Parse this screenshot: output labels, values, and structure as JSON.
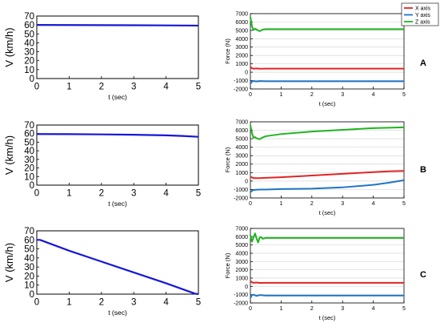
{
  "figure": {
    "legend": {
      "entries": [
        "X axis",
        "Y axis",
        "Z axis"
      ],
      "placement": "top-right"
    },
    "row_labels": [
      "A",
      "B",
      "C"
    ],
    "colors": {
      "velocity": "#1717d6",
      "x": "#e02424",
      "y": "#1f74c4",
      "z": "#1fb41f",
      "grid": "#d7d7d7"
    }
  },
  "chart_data": [
    {
      "id": "A-velocity",
      "type": "line",
      "row": "A",
      "xlabel": "t (sec)",
      "ylabel": "V (km/h)",
      "xlim": [
        0,
        5
      ],
      "ylim": [
        0,
        70
      ],
      "xticks": [
        0,
        1,
        2,
        3,
        4,
        5
      ],
      "yticks": [
        0,
        10,
        20,
        30,
        40,
        50,
        60,
        70
      ],
      "grid": false,
      "series": [
        {
          "color_key": "velocity",
          "x": [
            0,
            1,
            2,
            3,
            4,
            5
          ],
          "y": [
            60,
            59.9,
            59.8,
            59.7,
            59.5,
            59.3
          ]
        }
      ]
    },
    {
      "id": "A-force",
      "type": "line",
      "row": "A",
      "xlabel": "t (sec)",
      "ylabel": "Force (N)",
      "xlim": [
        0,
        5
      ],
      "ylim": [
        -2000,
        7000
      ],
      "xticks": [
        0,
        1,
        2,
        3,
        4,
        5
      ],
      "yticks": [
        -2000,
        -1000,
        0,
        1000,
        2000,
        3000,
        4000,
        5000,
        6000,
        7000
      ],
      "grid": true,
      "series": [
        {
          "name": "X axis",
          "color_key": "x",
          "x": [
            0,
            0.05,
            0.1,
            0.2,
            0.3,
            0.5,
            1,
            5
          ],
          "y": [
            650,
            480,
            420,
            450,
            420,
            430,
            430,
            430
          ]
        },
        {
          "name": "Y axis",
          "color_key": "y",
          "x": [
            0,
            0.05,
            0.1,
            0.2,
            0.3,
            0.5,
            1,
            5
          ],
          "y": [
            -1400,
            -1100,
            -1050,
            -1100,
            -1050,
            -1080,
            -1080,
            -1080
          ]
        },
        {
          "name": "Z axis",
          "color_key": "z",
          "x": [
            0,
            0.05,
            0.1,
            0.15,
            0.2,
            0.3,
            0.4,
            0.5,
            1,
            5
          ],
          "y": [
            6600,
            5500,
            5050,
            5200,
            5100,
            4900,
            5100,
            5150,
            5150,
            5150
          ]
        }
      ]
    },
    {
      "id": "B-velocity",
      "type": "line",
      "row": "B",
      "xlabel": "t (sec)",
      "ylabel": "V (km/h)",
      "xlim": [
        0,
        5
      ],
      "ylim": [
        0,
        70
      ],
      "xticks": [
        0,
        1,
        2,
        3,
        4,
        5
      ],
      "yticks": [
        0,
        10,
        20,
        30,
        40,
        50,
        60,
        70
      ],
      "grid": false,
      "series": [
        {
          "color_key": "velocity",
          "x": [
            0,
            1,
            2,
            3,
            4,
            4.5,
            5
          ],
          "y": [
            59.5,
            59.4,
            59.1,
            58.7,
            58,
            57.3,
            56.3
          ]
        }
      ]
    },
    {
      "id": "B-force",
      "type": "line",
      "row": "B",
      "xlabel": "t (sec)",
      "ylabel": "Force (N)",
      "xlim": [
        0,
        5
      ],
      "ylim": [
        -2000,
        7000
      ],
      "xticks": [
        0,
        1,
        2,
        3,
        4,
        5
      ],
      "yticks": [
        -2000,
        -1000,
        0,
        1000,
        2000,
        3000,
        4000,
        5000,
        6000,
        7000
      ],
      "grid": true,
      "series": [
        {
          "name": "X axis",
          "color_key": "x",
          "x": [
            0,
            0.1,
            0.3,
            0.5,
            1,
            2,
            3,
            4,
            4.5,
            5
          ],
          "y": [
            500,
            350,
            350,
            380,
            450,
            650,
            850,
            1050,
            1150,
            1200
          ]
        },
        {
          "name": "Y axis",
          "color_key": "y",
          "x": [
            0,
            0.1,
            0.3,
            0.5,
            1,
            2,
            3,
            4,
            4.5,
            5
          ],
          "y": [
            -1300,
            -1050,
            -1000,
            -1000,
            -950,
            -900,
            -750,
            -450,
            -200,
            100
          ]
        },
        {
          "name": "Z axis",
          "color_key": "z",
          "x": [
            0,
            0.05,
            0.1,
            0.15,
            0.2,
            0.3,
            0.4,
            0.5,
            1,
            2,
            3,
            4,
            5
          ],
          "y": [
            6600,
            5700,
            5100,
            5200,
            5050,
            4950,
            5150,
            5300,
            5550,
            5850,
            6050,
            6250,
            6350
          ]
        }
      ]
    },
    {
      "id": "C-velocity",
      "type": "line",
      "row": "C",
      "xlabel": "t (sec)",
      "ylabel": "V (km/h)",
      "xlim": [
        0,
        5
      ],
      "ylim": [
        0,
        70
      ],
      "xticks": [
        0,
        1,
        2,
        3,
        4,
        5
      ],
      "yticks": [
        0,
        10,
        20,
        30,
        40,
        50,
        60,
        70
      ],
      "grid": false,
      "series": [
        {
          "color_key": "velocity",
          "x": [
            0,
            0.1,
            1,
            2,
            3,
            4,
            4.9,
            5
          ],
          "y": [
            60,
            60,
            48,
            36,
            24,
            12,
            0.5,
            0
          ]
        }
      ]
    },
    {
      "id": "C-force",
      "type": "line",
      "row": "C",
      "xlabel": "t (sec)",
      "ylabel": "Force (N)",
      "xlim": [
        0,
        5
      ],
      "ylim": [
        -2000,
        7000
      ],
      "xticks": [
        0,
        1,
        2,
        3,
        4,
        5
      ],
      "yticks": [
        -2000,
        -1000,
        0,
        1000,
        2000,
        3000,
        4000,
        5000,
        6000,
        7000
      ],
      "grid": true,
      "series": [
        {
          "name": "X axis",
          "color_key": "x",
          "x": [
            0,
            0.05,
            0.1,
            0.2,
            0.3,
            0.5,
            1,
            5
          ],
          "y": [
            650,
            500,
            430,
            470,
            420,
            430,
            430,
            430
          ]
        },
        {
          "name": "Y axis",
          "color_key": "y",
          "x": [
            0,
            0.05,
            0.1,
            0.2,
            0.3,
            0.5,
            1,
            5
          ],
          "y": [
            -1400,
            -1050,
            -1000,
            -1150,
            -1050,
            -1100,
            -1100,
            -1100
          ]
        },
        {
          "name": "Z axis",
          "color_key": "z",
          "x": [
            0,
            0.05,
            0.1,
            0.15,
            0.2,
            0.25,
            0.3,
            0.35,
            0.4,
            0.5,
            1,
            5
          ],
          "y": [
            6200,
            5400,
            5900,
            6400,
            5800,
            5300,
            5900,
            5950,
            5750,
            5850,
            5850,
            5850
          ]
        }
      ]
    }
  ]
}
